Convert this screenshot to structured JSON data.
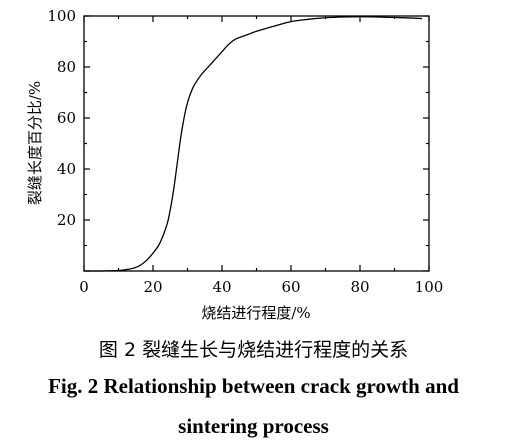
{
  "caption": {
    "cn": "图 2   裂缝生长与烧结进行程度的关系",
    "en_line1": "Fig. 2    Relationship between crack growth and",
    "en_line2": "sintering process"
  },
  "chart_data": {
    "type": "line",
    "title": "",
    "xlabel": "烧结进行程度/%",
    "ylabel": "裂缝长度百分比/%",
    "xlim": [
      0,
      100
    ],
    "ylim": [
      0,
      100
    ],
    "x_ticks": [
      "0",
      "20",
      "40",
      "60",
      "80",
      "100"
    ],
    "y_ticks": [
      "20",
      "40",
      "60",
      "80",
      "100"
    ],
    "grid": false,
    "legend": "none",
    "series": [
      {
        "x": [
          0,
          5,
          10,
          12,
          14,
          16,
          18,
          20,
          22,
          24,
          25,
          26,
          27,
          28,
          29,
          30,
          31,
          32,
          34,
          36,
          38,
          40,
          42,
          44,
          46,
          50,
          55,
          60,
          65,
          70,
          75,
          80,
          85,
          90,
          95,
          98
        ],
        "y": [
          0,
          0,
          0.2,
          0.5,
          1,
          2,
          4,
          7,
          11,
          18,
          24,
          32,
          42,
          52,
          60,
          66,
          70,
          73,
          77,
          80,
          83,
          86,
          89,
          91,
          92,
          94,
          96,
          97.8,
          98.7,
          99.3,
          99.6,
          99.7,
          99.6,
          99.4,
          99.2,
          99
        ]
      }
    ]
  }
}
